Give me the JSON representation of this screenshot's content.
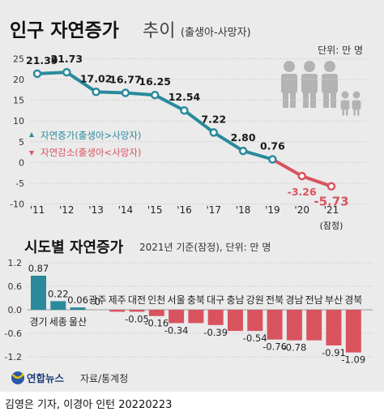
{
  "header": {
    "title": "인구 자연증가",
    "title_suffix": "추이",
    "title_note": "(출생아-사망자)",
    "unit": "단위: 만 명"
  },
  "colors": {
    "increase": "#2a8a9c",
    "decrease": "#d9535f",
    "marker_fill": "#ffffff",
    "grid": "#cfcfcf",
    "people_icon": "#b3b3b3"
  },
  "legend": {
    "increase": "자연증가(출생아>사망자)",
    "decrease": "자연감소(출생아<사망자)"
  },
  "chart_data": [
    {
      "type": "line",
      "title": "인구 자연증가 추이 (출생아-사망자)",
      "unit": "단위: 만 명",
      "x": [
        "'11",
        "'12",
        "'13",
        "'14",
        "'15",
        "'16",
        "'17",
        "'18",
        "'19",
        "'20",
        "'21"
      ],
      "x_note": "(잠정)",
      "values": [
        21.39,
        21.73,
        17.02,
        16.77,
        16.25,
        12.54,
        7.22,
        2.8,
        0.76,
        -3.26,
        -5.73
      ],
      "labels": [
        "21.39",
        "21.73",
        "17.02",
        "16.77",
        "16.25",
        "12.54",
        "7.22",
        "2.80",
        "0.76",
        "-3.26",
        "-5.73"
      ],
      "ylim": [
        -10,
        25
      ],
      "yticks": [
        25,
        20,
        15,
        10,
        5,
        0,
        -5,
        -10
      ],
      "grid": true,
      "legend_position": "left-middle"
    },
    {
      "type": "bar",
      "title": "시도별 자연증가",
      "subtitle": "2021년 기준(잠정), 단위: 만 명",
      "categories": [
        "경기",
        "세종",
        "울산",
        "광주",
        "제주",
        "대전",
        "인천",
        "서울",
        "충북",
        "대구",
        "충남",
        "강원",
        "전북",
        "경남",
        "전남",
        "부산",
        "경북"
      ],
      "values": [
        0.87,
        0.22,
        0.06,
        0,
        -0.05,
        -0.05,
        -0.16,
        -0.34,
        -0.34,
        -0.39,
        -0.54,
        -0.54,
        -0.76,
        -0.78,
        -0.78,
        -0.91,
        -1.09
      ],
      "labels": [
        "0.87",
        "0.22",
        "0.06",
        "0",
        "",
        "-0.05",
        "-0.16",
        "-0.34",
        "",
        "-0.39",
        "",
        "-0.54",
        "-0.76",
        "-0.78",
        "",
        "-0.91",
        "-1.09"
      ],
      "ylim": [
        -1.2,
        1.2
      ],
      "yticks": [
        "1.2",
        "0.6",
        "0.0",
        "-0.6",
        "-1.2"
      ],
      "grid": true
    }
  ],
  "source": {
    "logo": "연합뉴스",
    "text": "자료/통계청"
  },
  "credit": "김영은 기자, 이경아 인턴  20220223"
}
